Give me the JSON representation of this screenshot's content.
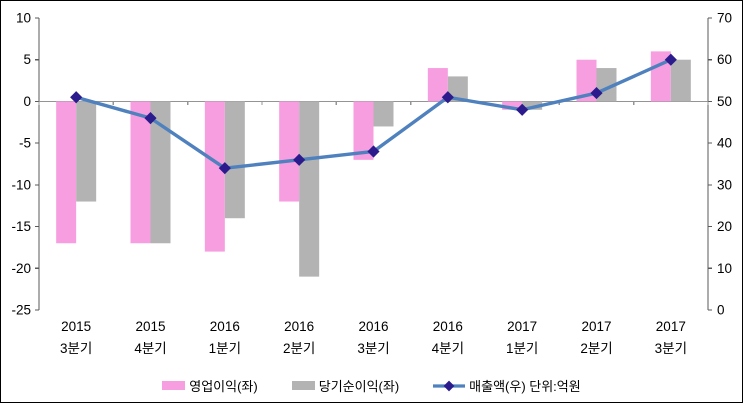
{
  "chart_data": {
    "type": "combo",
    "title": "",
    "categories": [
      "2015 3분기",
      "2015 4분기",
      "2016 1분기",
      "2016 2분기",
      "2016 3분기",
      "2016 4분기",
      "2017 1분기",
      "2017 2분기",
      "2017 3분기"
    ],
    "bar_series": [
      {
        "name": "영업이익(좌)",
        "color": "#F79EE0",
        "axis": "left",
        "values": [
          -17,
          -17,
          -18,
          -12,
          -7,
          4,
          -1,
          5,
          6
        ]
      },
      {
        "name": "당기순이익(좌)",
        "color": "#B3B3B3",
        "axis": "left",
        "values": [
          -12,
          -17,
          -14,
          -21,
          -3,
          3,
          -1,
          4,
          5
        ]
      }
    ],
    "line_series": [
      {
        "name": "매출액(우) 단위:억원",
        "color": "#4E81BD",
        "marker": "diamond",
        "marker_color": "#2B1B8C",
        "axis": "right",
        "values": [
          51,
          46,
          34,
          36,
          38,
          51,
          48,
          52,
          60
        ]
      }
    ],
    "left_axis": {
      "min": -25,
      "max": 10,
      "ticks": [
        10,
        5,
        0,
        -5,
        -10,
        -15,
        -20,
        -25
      ]
    },
    "right_axis": {
      "min": 0,
      "max": 70,
      "ticks": [
        70,
        60,
        50,
        40,
        30,
        20,
        10,
        0
      ]
    },
    "grid": false,
    "legend_position": "bottom"
  },
  "colors": {
    "axis": "#595959",
    "zero_line": "#949494",
    "text": "#000000"
  }
}
